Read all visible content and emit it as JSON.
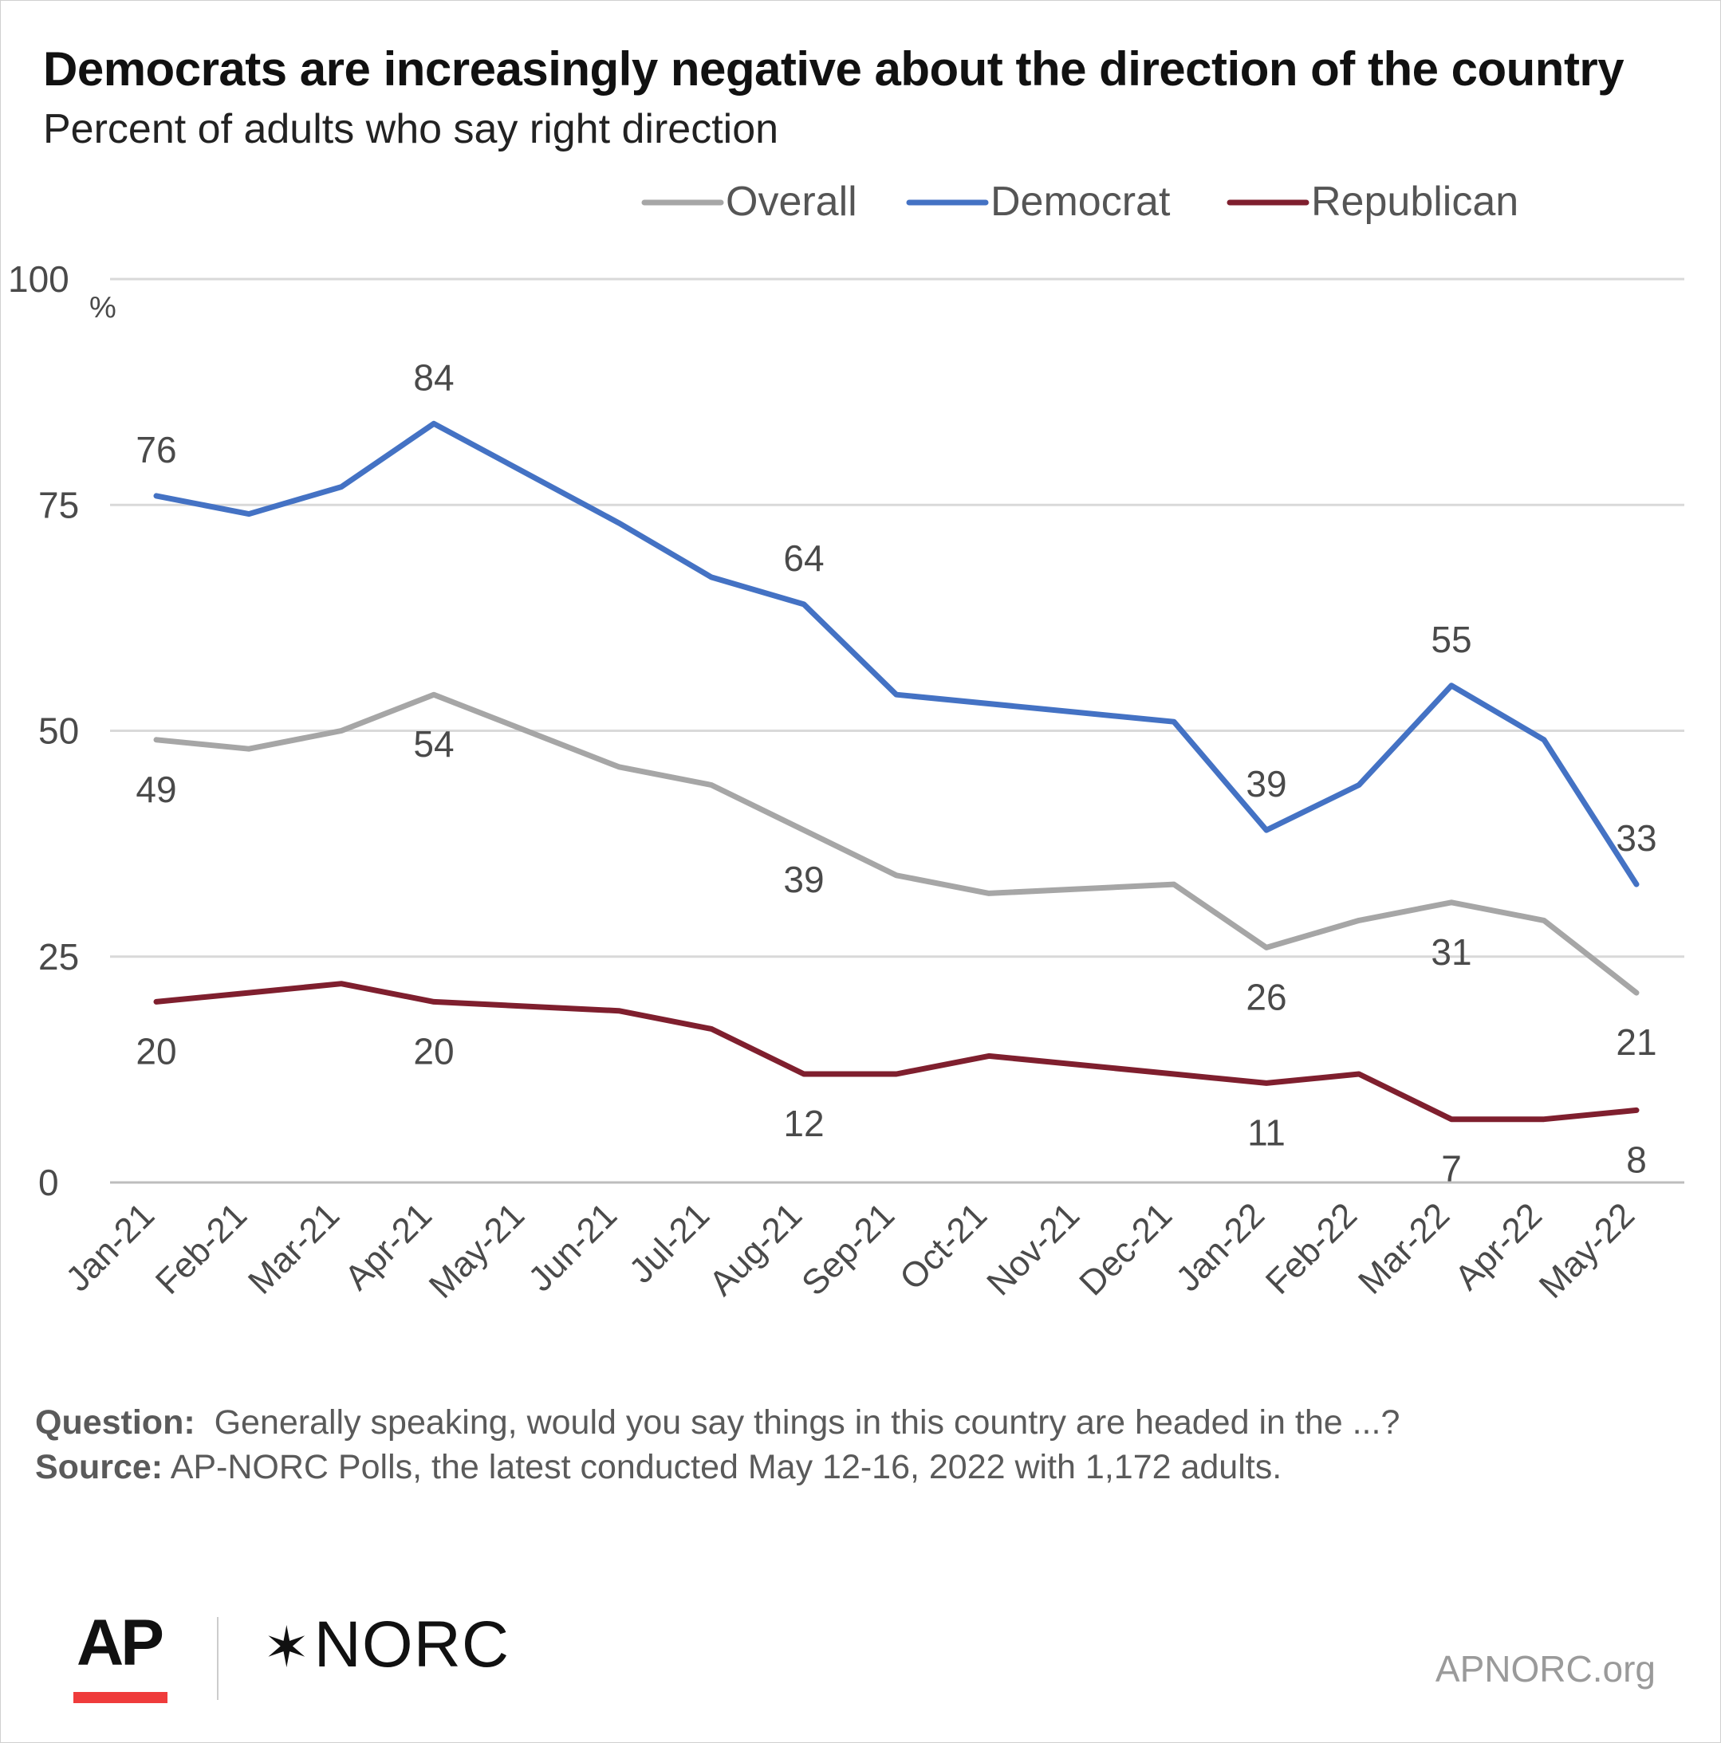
{
  "title": "Democrats are increasingly negative about the direction of the country",
  "subtitle": "Percent of adults who say right direction",
  "note": {
    "question_label": "Question:",
    "question_text": "Generally speaking, would you say things in this country are headed in the ...?",
    "source_label": "Source:",
    "source_text": "AP-NORC Polls, the latest conducted May 12-16, 2022 with 1,172 adults."
  },
  "logos": {
    "ap": "AP",
    "norc_mark": "✶",
    "norc": "NORC",
    "site": "APNORC.org"
  },
  "chart_data": {
    "type": "line",
    "categories": [
      "Jan-21",
      "Feb-21",
      "Mar-21",
      "Apr-21",
      "May-21",
      "Jun-21",
      "Jul-21",
      "Aug-21",
      "Sep-21",
      "Oct-21",
      "Nov-21",
      "Dec-21",
      "Jan-22",
      "Feb-22",
      "Mar-22",
      "Apr-22",
      "May-22"
    ],
    "ylim": [
      0,
      100
    ],
    "yticks": [
      0,
      25,
      50,
      75,
      100
    ],
    "yunit": "%",
    "grid": true,
    "legend_position": "top-right",
    "series": [
      {
        "name": "Overall",
        "color": "#a6a6a6",
        "values": [
          49,
          48,
          50,
          54,
          null,
          46,
          44,
          39,
          34,
          32,
          null,
          33,
          26,
          29,
          31,
          29,
          21
        ],
        "labels": [
          {
            "i": 0,
            "text": "49",
            "pos": "below"
          },
          {
            "i": 3,
            "text": "54",
            "pos": "below"
          },
          {
            "i": 7,
            "text": "39",
            "pos": "below"
          },
          {
            "i": 12,
            "text": "26",
            "pos": "below"
          },
          {
            "i": 14,
            "text": "31",
            "pos": "below"
          },
          {
            "i": 16,
            "text": "21",
            "pos": "below"
          }
        ]
      },
      {
        "name": "Democrat",
        "color": "#4472c4",
        "values": [
          76,
          74,
          77,
          84,
          null,
          73,
          67,
          64,
          54,
          null,
          null,
          51,
          39,
          44,
          55,
          49,
          33
        ],
        "labels": [
          {
            "i": 0,
            "text": "76",
            "pos": "above"
          },
          {
            "i": 3,
            "text": "84",
            "pos": "above"
          },
          {
            "i": 7,
            "text": "64",
            "pos": "above"
          },
          {
            "i": 12,
            "text": "39",
            "pos": "above"
          },
          {
            "i": 14,
            "text": "55",
            "pos": "above"
          },
          {
            "i": 16,
            "text": "33",
            "pos": "above"
          }
        ]
      },
      {
        "name": "Republican",
        "color": "#7f1f2e",
        "values": [
          20,
          21,
          22,
          20,
          null,
          19,
          17,
          12,
          12,
          14,
          null,
          12,
          11,
          12,
          7,
          7,
          8
        ],
        "labels": [
          {
            "i": 0,
            "text": "20",
            "pos": "below"
          },
          {
            "i": 3,
            "text": "20",
            "pos": "below"
          },
          {
            "i": 7,
            "text": "12",
            "pos": "below"
          },
          {
            "i": 12,
            "text": "11",
            "pos": "below"
          },
          {
            "i": 14,
            "text": "7",
            "pos": "below"
          },
          {
            "i": 16,
            "text": "8",
            "pos": "below"
          }
        ]
      }
    ]
  }
}
